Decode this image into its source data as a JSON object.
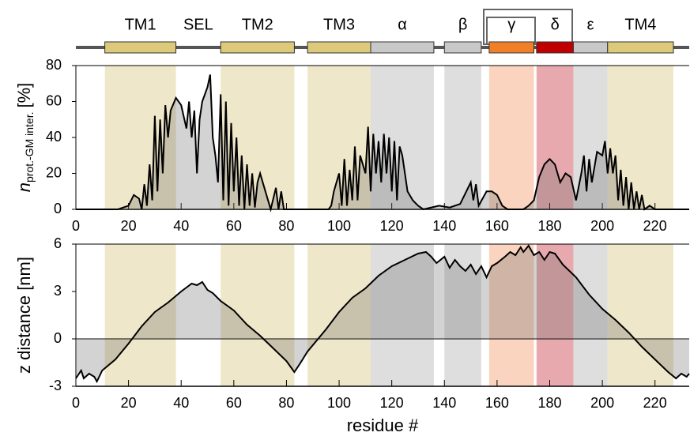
{
  "domains": [
    {
      "name": "TM1",
      "start": 11,
      "end": 38,
      "color": "#dcc97a",
      "shade": "#efe7c9"
    },
    {
      "name": "SEL",
      "start": 38,
      "end": 55,
      "color": null,
      "shade": null
    },
    {
      "name": "TM2",
      "start": 55,
      "end": 83,
      "color": "#dcc97a",
      "shade": "#efe7c9"
    },
    {
      "name": "TM3",
      "start": 88,
      "end": 112,
      "color": "#dcc97a",
      "shade": "#efe7c9"
    },
    {
      "name": "α",
      "start": 112,
      "end": 136,
      "color": "#c8c8c8",
      "shade": "#dedede"
    },
    {
      "name": "β",
      "start": 140,
      "end": 154,
      "color": "#c8c8c8",
      "shade": "#dedede"
    },
    {
      "name": "γ",
      "start": 157,
      "end": 174,
      "color": "#f07f28",
      "shade": "#fbd4bf"
    },
    {
      "name": "δ",
      "start": 175,
      "end": 189,
      "color": "#c00000",
      "shade": "#e8a9ae"
    },
    {
      "name": "ε",
      "start": 189,
      "end": 202,
      "color": "#c8c8c8",
      "shade": "#dedede"
    },
    {
      "name": "TM4",
      "start": 202,
      "end": 227,
      "color": "#dcc97a",
      "shade": "#efe7c9"
    }
  ],
  "chart_data": [
    {
      "type": "line",
      "ylabel": "n",
      "ylabel_sub": "prot.-GM inter.",
      "ylabel_unit": "[%]",
      "xlim": [
        0,
        233
      ],
      "xticks": [
        0,
        20,
        40,
        60,
        80,
        100,
        120,
        140,
        160,
        180,
        200,
        220
      ],
      "ylim": [
        0,
        80
      ],
      "yticks": [
        0,
        20,
        40,
        60,
        80
      ],
      "color": "#000000",
      "fill": "rgba(110,110,110,0.3)",
      "x": [
        0,
        16,
        18,
        20,
        22,
        24,
        25,
        26,
        27,
        28,
        29,
        30,
        31,
        32,
        33,
        34,
        35,
        36,
        38,
        40,
        42,
        43,
        44,
        45,
        46,
        47,
        48,
        50,
        51,
        52,
        53,
        54,
        55,
        56,
        57,
        58,
        59,
        60,
        61,
        62,
        63,
        64,
        65,
        66,
        67,
        68,
        69,
        70,
        72,
        74,
        76,
        77,
        78,
        79,
        80,
        96,
        97,
        98,
        100,
        101,
        102,
        103,
        104,
        105,
        106,
        107,
        108,
        110,
        111,
        112,
        113,
        114,
        115,
        116,
        117,
        118,
        119,
        120,
        121,
        122,
        123,
        124,
        125,
        126,
        128,
        130,
        132,
        138,
        142,
        146,
        150,
        151,
        152,
        153,
        156,
        158,
        160,
        162,
        164,
        170,
        172,
        174,
        176,
        178,
        180,
        182,
        184,
        186,
        188,
        190,
        192,
        193,
        194,
        195,
        196,
        198,
        200,
        201,
        202,
        203,
        204,
        205,
        206,
        207,
        208,
        209,
        210,
        211,
        212,
        213,
        214,
        215,
        216,
        218,
        220,
        233
      ],
      "values": [
        0,
        0,
        1,
        2,
        8,
        6,
        0,
        14,
        2,
        25,
        5,
        52,
        10,
        50,
        20,
        58,
        40,
        55,
        62,
        58,
        45,
        60,
        40,
        55,
        20,
        50,
        60,
        68,
        75,
        40,
        30,
        15,
        64,
        5,
        60,
        2,
        48,
        10,
        40,
        2,
        30,
        0,
        25,
        2,
        20,
        1,
        15,
        20,
        10,
        0,
        12,
        0,
        10,
        0,
        0,
        0,
        2,
        10,
        20,
        2,
        28,
        2,
        22,
        5,
        35,
        5,
        30,
        20,
        46,
        10,
        42,
        20,
        38,
        15,
        42,
        20,
        40,
        10,
        38,
        5,
        35,
        30,
        20,
        10,
        5,
        2,
        0,
        2,
        1,
        3,
        15,
        5,
        14,
        2,
        10,
        10,
        8,
        2,
        0,
        0,
        2,
        5,
        18,
        25,
        28,
        25,
        15,
        20,
        18,
        5,
        20,
        30,
        10,
        28,
        15,
        32,
        30,
        38,
        20,
        34,
        20,
        30,
        5,
        22,
        2,
        18,
        0,
        15,
        0,
        10,
        0,
        8,
        0,
        2,
        0,
        0
      ]
    },
    {
      "type": "line",
      "ylabel": "z distance [nm]",
      "xlabel": "residue #",
      "xlim": [
        0,
        233
      ],
      "xticks": [
        0,
        20,
        40,
        60,
        80,
        100,
        120,
        140,
        160,
        180,
        200,
        220
      ],
      "ylim": [
        -3,
        6
      ],
      "yticks": [
        -3,
        0,
        3,
        6
      ],
      "zero_line": true,
      "color": "#000000",
      "fill": "rgba(110,110,110,0.3)",
      "x": [
        0,
        2,
        3,
        5,
        7,
        8,
        10,
        15,
        20,
        25,
        30,
        35,
        40,
        44,
        46,
        48,
        50,
        52,
        55,
        60,
        65,
        70,
        75,
        80,
        83,
        85,
        88,
        95,
        100,
        105,
        110,
        115,
        120,
        125,
        130,
        133,
        135,
        137,
        140,
        142,
        144,
        146,
        148,
        150,
        152,
        154,
        156,
        158,
        160,
        163,
        165,
        167,
        169,
        170,
        172,
        174,
        176,
        178,
        180,
        182,
        185,
        190,
        195,
        200,
        205,
        210,
        215,
        220,
        225,
        228,
        230,
        232,
        233
      ],
      "values": [
        -2.5,
        -2,
        -2.5,
        -2.2,
        -2.4,
        -2.7,
        -2,
        -1.3,
        -0.3,
        0.8,
        1.7,
        2.3,
        3,
        3.5,
        3.4,
        3.6,
        3.1,
        2.9,
        2.4,
        1.8,
        0.9,
        0.2,
        -0.6,
        -1.4,
        -2.1,
        -1.6,
        -0.8,
        0.6,
        1.7,
        2.6,
        3.2,
        4,
        4.6,
        5,
        5.4,
        5.5,
        5.2,
        4.8,
        5.2,
        4.5,
        5,
        4.6,
        4.3,
        4.7,
        4.1,
        4.6,
        3.9,
        4.6,
        4.8,
        5.2,
        5.5,
        5.3,
        5.8,
        5.5,
        5.9,
        5.3,
        5.5,
        5,
        5.5,
        5.4,
        4.7,
        3.9,
        2.8,
        1.9,
        1.2,
        0.4,
        -0.5,
        -1.3,
        -2.1,
        -2.5,
        -2.2,
        -2.4,
        -2.2
      ]
    }
  ]
}
